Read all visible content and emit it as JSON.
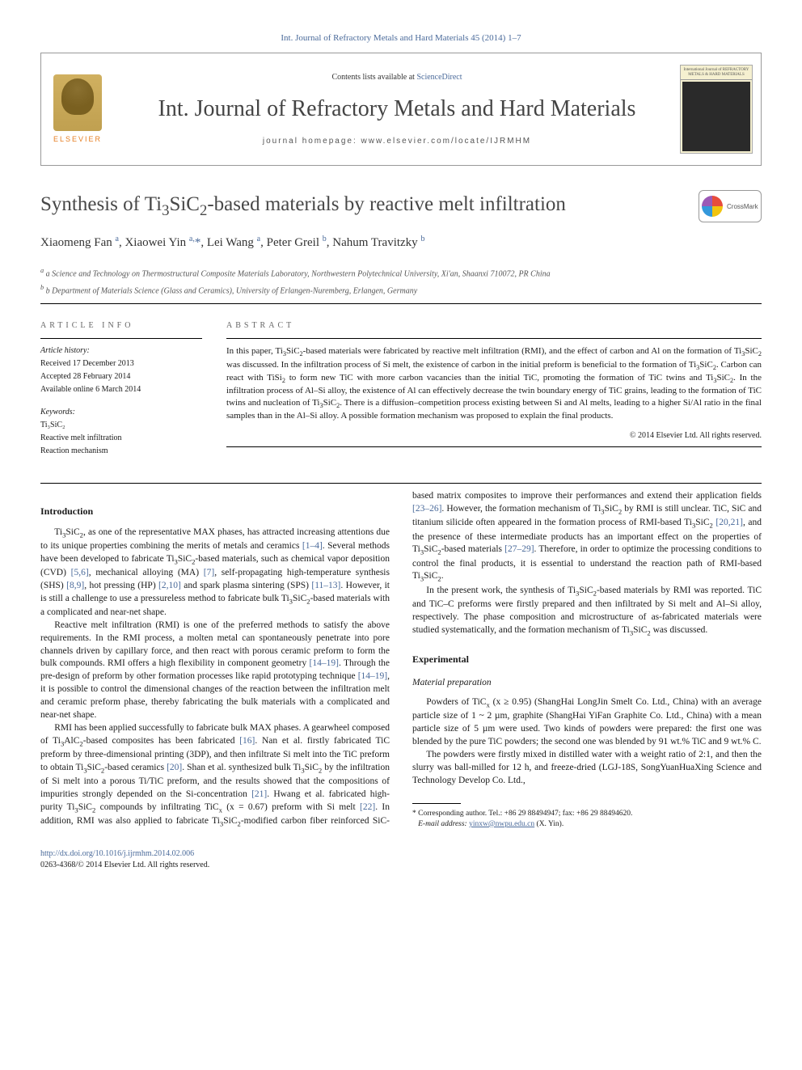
{
  "top_ref": "Int. Journal of Refractory Metals and Hard Materials 45 (2014) 1–7",
  "header": {
    "contents_prefix": "Contents lists available at ",
    "contents_link": "ScienceDirect",
    "journal_title": "Int. Journal of Refractory Metals and Hard Materials",
    "homepage_label": "journal homepage: www.elsevier.com/locate/IJRMHM",
    "publisher": "ELSEVIER",
    "cover_caption": "International Journal of REFRACTORY METALS & HARD MATERIALS"
  },
  "crossmark_label": "CrossMark",
  "title_html": "Synthesis of Ti<sub>3</sub>SiC<sub>2</sub>-based materials by reactive melt infiltration",
  "authors_html": "Xiaomeng Fan <sup>a</sup>, Xiaowei Yin <sup>a,</sup><span class='corr'>*</span>, Lei Wang <sup>a</sup>, Peter Greil <sup>b</sup>, Nahum Travitzky <sup>b</sup>",
  "affiliations": [
    "a Science and Technology on Thermostructural Composite Materials Laboratory, Northwestern Polytechnical University, Xi'an, Shaanxi 710072, PR China",
    "b Department of Materials Science (Glass and Ceramics), University of Erlangen-Nuremberg, Erlangen, Germany"
  ],
  "article_info": {
    "heading": "article info",
    "history_label": "Article history:",
    "received": "Received 17 December 2013",
    "accepted": "Accepted 28 February 2014",
    "online": "Available online 6 March 2014",
    "keywords_label": "Keywords:",
    "keywords": [
      "Ti₃SiC₂",
      "Reactive melt infiltration",
      "Reaction mechanism"
    ]
  },
  "abstract": {
    "heading": "abstract",
    "text_html": "In this paper, Ti<sub>3</sub>SiC<sub>2</sub>-based materials were fabricated by reactive melt infiltration (RMI), and the effect of carbon and Al on the formation of Ti<sub>3</sub>SiC<sub>2</sub> was discussed. In the infiltration process of Si melt, the existence of carbon in the initial preform is beneficial to the formation of Ti<sub>3</sub>SiC<sub>2</sub>. Carbon can react with TiSi<sub>2</sub> to form new TiC with more carbon vacancies than the initial TiC, promoting the formation of TiC twins and Ti<sub>3</sub>SiC<sub>2</sub>. In the infiltration process of Al–Si alloy, the existence of Al can effectively decrease the twin boundary energy of TiC grains, leading to the formation of TiC twins and nucleation of Ti<sub>3</sub>SiC<sub>2</sub>. There is a diffusion–competition process existing between Si and Al melts, leading to a higher Si/Al ratio in the final samples than in the Al–Si alloy. A possible formation mechanism was proposed to explain the final products.",
    "copyright": "© 2014 Elsevier Ltd. All rights reserved."
  },
  "body": {
    "intro_heading": "Introduction",
    "p1_html": "Ti<sub>3</sub>SiC<sub>2</sub>, as one of the representative MAX phases, has attracted increasing attentions due to its unique properties combining the merits of metals and ceramics <span class='ref-link'>[1–4]</span>. Several methods have been developed to fabricate Ti<sub>3</sub>SiC<sub>2</sub>-based materials, such as chemical vapor deposition (CVD) <span class='ref-link'>[5,6]</span>, mechanical alloying (MA) <span class='ref-link'>[7]</span>, self-propagating high-temperature synthesis (SHS) <span class='ref-link'>[8,9]</span>, hot pressing (HP) <span class='ref-link'>[2,10]</span> and spark plasma sintering (SPS) <span class='ref-link'>[11–13]</span>. However, it is still a challenge to use a pressureless method to fabricate bulk Ti<sub>3</sub>SiC<sub>2</sub>-based materials with a complicated and near-net shape.",
    "p2_html": "Reactive melt infiltration (RMI) is one of the preferred methods to satisfy the above requirements. In the RMI process, a molten metal can spontaneously penetrate into pore channels driven by capillary force, and then react with porous ceramic preform to form the bulk compounds. RMI offers a high flexibility in component geometry <span class='ref-link'>[14–19]</span>. Through the pre-design of preform by other formation processes like rapid prototyping technique <span class='ref-link'>[14–19]</span>, it is possible to control the dimensional changes of the reaction between the infiltration melt and ceramic preform phase, thereby fabricating the bulk materials with a complicated and near-net shape.",
    "p3_html": "RMI has been applied successfully to fabricate bulk MAX phases. A gearwheel composed of Ti<sub>3</sub>AlC<sub>2</sub>-based composites has been fabricated <span class='ref-link'>[16]</span>. Nan et al. firstly fabricated TiC preform by three-dimensional printing (3DP), and then infiltrate Si melt into the TiC preform to obtain Ti<sub>3</sub>SiC<sub>2</sub>-based ceramics <span class='ref-link'>[20]</span>. Shan et al. synthesized bulk Ti<sub>3</sub>SiC<sub>2</sub> by the infiltration of Si melt into a porous Ti/TiC preform, and the results showed that the compositions of impurities strongly depended on the Si-concentration <span class='ref-link'>[21]</span>. Hwang et al. fabricated high-purity Ti<sub>3</sub>SiC<sub>2</sub> compounds by infiltrating TiC<sub>x</sub> (x = 0.67) preform with Si melt <span class='ref-link'>[22]</span>. In addition, RMI was also applied to fabricate Ti<sub>3</sub>SiC<sub>2</sub>-modified carbon fiber reinforced SiC-based matrix composites to improve their performances and extend their application fields <span class='ref-link'>[23–26]</span>. However, the formation mechanism of Ti<sub>3</sub>SiC<sub>2</sub> by RMI is still unclear. TiC, SiC and titanium silicide often appeared in the formation process of RMI-based Ti<sub>3</sub>SiC<sub>2</sub> <span class='ref-link'>[20,21]</span>, and the presence of these intermediate products has an important effect on the properties of Ti<sub>3</sub>SiC<sub>2</sub>-based materials <span class='ref-link'>[27–29]</span>. Therefore, in order to optimize the processing conditions to control the final products, it is essential to understand the reaction path of RMI-based Ti<sub>3</sub>SiC<sub>2</sub>.",
    "p4_html": "In the present work, the synthesis of Ti<sub>3</sub>SiC<sub>2</sub>-based materials by RMI was reported. TiC and TiC–C preforms were firstly prepared and then infiltrated by Si melt and Al–Si alloy, respectively. The phase composition and microstructure of as-fabricated materials were studied systematically, and the formation mechanism of Ti<sub>3</sub>SiC<sub>2</sub> was discussed.",
    "exp_heading": "Experimental",
    "matprep_heading": "Material preparation",
    "p5_html": "Powders of TiC<sub>x</sub> (x ≥ 0.95) (ShangHai LongJin Smelt Co. Ltd., China) with an average particle size of 1 ~ 2 µm, graphite (ShangHai YiFan Graphite Co. Ltd., China) with a mean particle size of 5 µm were used. Two kinds of powders were prepared: the first one was blended by the pure TiC powders; the second one was blended by 91 wt.% TiC and 9 wt.% C.",
    "p6_html": "The powders were firstly mixed in distilled water with a weight ratio of 2:1, and then the slurry was ball-milled for 12 h, and freeze-dried (LGJ-18S, SongYuanHuaXing Science and Technology Develop Co. Ltd.,"
  },
  "footnote": {
    "corr_line": "* Corresponding author. Tel.: +86 29 88494947; fax: +86 29 88494620.",
    "email_label": "E-mail address: ",
    "email": "yinxw@nwpu.edu.cn",
    "email_suffix": " (X. Yin)."
  },
  "footer": {
    "doi": "http://dx.doi.org/10.1016/j.ijrmhm.2014.02.006",
    "issn_line": "0263-4368/© 2014 Elsevier Ltd. All rights reserved."
  },
  "colors": {
    "link": "#4a6a9a",
    "text": "#1a1a1a",
    "muted": "#666666"
  }
}
